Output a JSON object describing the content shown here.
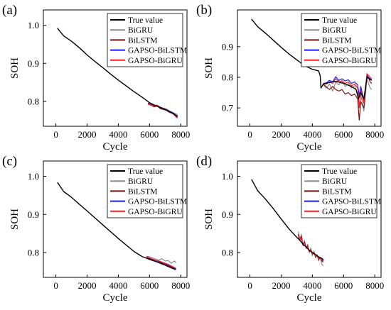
{
  "colors": {
    "True value": "#000000",
    "BiGRU": "#8c8c8c",
    "BiLSTM": "#7a1010",
    "GAPSO-BiLSTM": "#1a1aff",
    "GAPSO-BiGRU": "#ff1a1a"
  },
  "chart_data": [
    {
      "type": "line",
      "panel_label": "(a)",
      "xlabel": "Cycle",
      "ylabel": "SOH",
      "xlim": [
        -800,
        8400
      ],
      "ylim": [
        0.735,
        1.04
      ],
      "xticks": [
        0,
        2000,
        4000,
        6000,
        8000
      ],
      "yticks": [
        0.8,
        0.9,
        1.0
      ],
      "yticklabels": [
        "0.8",
        "0.9",
        "1.0"
      ],
      "legend_placement": "top-right",
      "series": [
        {
          "name": "True value",
          "x": [
            100,
            500,
            1000,
            1500,
            2000,
            2500,
            3000,
            3500,
            4000,
            4500,
            5000,
            5500,
            6000,
            6500,
            7000,
            7500,
            7800
          ],
          "y": [
            0.992,
            0.972,
            0.958,
            0.941,
            0.922,
            0.905,
            0.889,
            0.872,
            0.856,
            0.841,
            0.826,
            0.812,
            0.797,
            0.787,
            0.779,
            0.769,
            0.761
          ]
        },
        {
          "name": "BiGRU",
          "x": [
            5900,
            6100,
            6300,
            6500,
            6700,
            6900,
            7100,
            7300,
            7500,
            7700,
            7800
          ],
          "y": [
            0.795,
            0.793,
            0.789,
            0.791,
            0.784,
            0.783,
            0.78,
            0.775,
            0.771,
            0.768,
            0.765
          ]
        },
        {
          "name": "BiLSTM",
          "x": [
            5900,
            6100,
            6300,
            6500,
            6700,
            6900,
            7100,
            7300,
            7500,
            7700,
            7800
          ],
          "y": [
            0.793,
            0.79,
            0.786,
            0.788,
            0.781,
            0.779,
            0.776,
            0.771,
            0.768,
            0.76,
            0.757
          ]
        },
        {
          "name": "GAPSO-BiLSTM",
          "x": [
            5900,
            6100,
            6300,
            6500,
            6700,
            6900,
            7100,
            7300,
            7500,
            7700,
            7800
          ],
          "y": [
            0.796,
            0.792,
            0.79,
            0.789,
            0.785,
            0.781,
            0.778,
            0.774,
            0.77,
            0.764,
            0.762
          ]
        },
        {
          "name": "GAPSO-BiGRU",
          "x": [
            5900,
            6100,
            6300,
            6500,
            6700,
            6900,
            7100,
            7300,
            7500,
            7700,
            7800
          ],
          "y": [
            0.794,
            0.791,
            0.788,
            0.79,
            0.783,
            0.78,
            0.777,
            0.773,
            0.769,
            0.762,
            0.76
          ]
        }
      ]
    },
    {
      "type": "line",
      "panel_label": "(b)",
      "xlabel": "Cycle",
      "ylabel": "SOH",
      "xlim": [
        -800,
        8400
      ],
      "ylim": [
        0.64,
        1.02
      ],
      "xticks": [
        0,
        2000,
        4000,
        6000,
        8000
      ],
      "yticks": [
        0.7,
        0.8,
        0.9
      ],
      "yticklabels": [
        "0.7",
        "0.8",
        "0.9"
      ],
      "legend_placement": "top-right",
      "series": [
        {
          "name": "True value",
          "x": [
            100,
            500,
            1000,
            1500,
            2000,
            2500,
            3000,
            3500,
            4000,
            4400,
            4500,
            4550,
            4700,
            5000,
            5500,
            6000,
            6500,
            6800,
            6950,
            7100,
            7300,
            7500,
            7800
          ],
          "y": [
            0.99,
            0.965,
            0.944,
            0.921,
            0.898,
            0.876,
            0.857,
            0.838,
            0.826,
            0.821,
            0.805,
            0.765,
            0.778,
            0.782,
            0.787,
            0.78,
            0.77,
            0.76,
            0.73,
            0.75,
            0.73,
            0.8,
            0.79
          ]
        },
        {
          "name": "BiGRU",
          "x": [
            4700,
            4900,
            5100,
            5300,
            5500,
            5700,
            5900,
            6100,
            6300,
            6500,
            6700,
            6900,
            7000,
            7100,
            7300,
            7500,
            7700,
            7800
          ],
          "y": [
            0.775,
            0.765,
            0.778,
            0.755,
            0.785,
            0.775,
            0.79,
            0.77,
            0.778,
            0.765,
            0.772,
            0.745,
            0.735,
            0.745,
            0.69,
            0.795,
            0.765,
            0.76
          ]
        },
        {
          "name": "BiLSTM",
          "x": [
            4700,
            4900,
            5100,
            5300,
            5500,
            5700,
            5900,
            6100,
            6300,
            6500,
            6700,
            6900,
            7000,
            7100,
            7300,
            7500,
            7700,
            7800
          ],
          "y": [
            0.778,
            0.768,
            0.76,
            0.77,
            0.76,
            0.755,
            0.76,
            0.745,
            0.75,
            0.74,
            0.745,
            0.73,
            0.66,
            0.72,
            0.7,
            0.81,
            0.785,
            0.78
          ]
        },
        {
          "name": "GAPSO-BiLSTM",
          "x": [
            4700,
            4900,
            5100,
            5300,
            5500,
            5700,
            5900,
            6100,
            6300,
            6500,
            6700,
            6900,
            7000,
            7100,
            7300,
            7500,
            7700,
            7800
          ],
          "y": [
            0.78,
            0.782,
            0.79,
            0.785,
            0.802,
            0.79,
            0.795,
            0.788,
            0.792,
            0.78,
            0.785,
            0.775,
            0.74,
            0.77,
            0.725,
            0.805,
            0.795,
            0.792
          ]
        },
        {
          "name": "GAPSO-BiGRU",
          "x": [
            4700,
            4900,
            5100,
            5300,
            5500,
            5700,
            5900,
            6100,
            6300,
            6500,
            6700,
            6900,
            7000,
            7100,
            7300,
            7500,
            7700,
            7800
          ],
          "y": [
            0.779,
            0.778,
            0.785,
            0.78,
            0.795,
            0.785,
            0.788,
            0.78,
            0.785,
            0.772,
            0.778,
            0.765,
            0.7,
            0.76,
            0.715,
            0.812,
            0.8,
            0.795
          ]
        }
      ]
    },
    {
      "type": "line",
      "panel_label": "(c)",
      "xlabel": "Cycle",
      "ylabel": "SOH",
      "xlim": [
        -800,
        8400
      ],
      "ylim": [
        0.735,
        1.04
      ],
      "xticks": [
        0,
        2000,
        4000,
        6000,
        8000
      ],
      "yticks": [
        0.8,
        0.9,
        1.0
      ],
      "yticklabels": [
        "0.8",
        "0.9",
        "1.0"
      ],
      "legend_placement": "top-right",
      "series": [
        {
          "name": "True value",
          "x": [
            100,
            500,
            1000,
            1500,
            2000,
            2500,
            3000,
            3500,
            4000,
            4500,
            5000,
            5500,
            6000,
            6500,
            7000,
            7500,
            7700
          ],
          "y": [
            0.984,
            0.96,
            0.945,
            0.927,
            0.909,
            0.891,
            0.873,
            0.855,
            0.837,
            0.82,
            0.803,
            0.79,
            0.782,
            0.775,
            0.767,
            0.758,
            0.755
          ]
        },
        {
          "name": "BiGRU",
          "x": [
            5800,
            6000,
            6200,
            6400,
            6600,
            6800,
            7000,
            7200,
            7400,
            7600,
            7700
          ],
          "y": [
            0.79,
            0.789,
            0.786,
            0.783,
            0.78,
            0.784,
            0.778,
            0.779,
            0.772,
            0.778,
            0.773
          ]
        },
        {
          "name": "BiLSTM",
          "x": [
            5800,
            6000,
            6200,
            6400,
            6600,
            6800,
            7000,
            7200,
            7400,
            7600,
            7700
          ],
          "y": [
            0.787,
            0.784,
            0.781,
            0.779,
            0.776,
            0.772,
            0.77,
            0.766,
            0.762,
            0.759,
            0.757
          ]
        },
        {
          "name": "GAPSO-BiLSTM",
          "x": [
            5800,
            6000,
            6200,
            6400,
            6600,
            6800,
            7000,
            7200,
            7400,
            7600,
            7700
          ],
          "y": [
            0.788,
            0.785,
            0.782,
            0.779,
            0.777,
            0.774,
            0.771,
            0.768,
            0.764,
            0.76,
            0.758
          ]
        },
        {
          "name": "GAPSO-BiGRU",
          "x": [
            5800,
            6000,
            6200,
            6400,
            6600,
            6800,
            7000,
            7200,
            7400,
            7600,
            7700
          ],
          "y": [
            0.789,
            0.786,
            0.783,
            0.78,
            0.778,
            0.775,
            0.772,
            0.769,
            0.765,
            0.761,
            0.759
          ]
        }
      ]
    },
    {
      "type": "line",
      "panel_label": "(d)",
      "xlabel": "Cycle",
      "ylabel": "SOH",
      "xlim": [
        -800,
        8400
      ],
      "ylim": [
        0.735,
        1.04
      ],
      "xticks": [
        0,
        2000,
        4000,
        6000,
        8000
      ],
      "yticks": [
        0.8,
        0.9,
        1.0
      ],
      "yticklabels": [
        "0.8",
        "0.9",
        "1.0"
      ],
      "legend_placement": "top-right",
      "series": [
        {
          "name": "True value",
          "x": [
            100,
            500,
            1000,
            1500,
            2000,
            2500,
            3000,
            3200,
            3400,
            3600,
            3800,
            4000,
            4200,
            4400,
            4600,
            4700
          ],
          "y": [
            0.992,
            0.962,
            0.94,
            0.915,
            0.888,
            0.862,
            0.84,
            0.832,
            0.822,
            0.815,
            0.806,
            0.8,
            0.795,
            0.789,
            0.785,
            0.781
          ]
        },
        {
          "name": "BiGRU",
          "x": [
            3100,
            3200,
            3300,
            3400,
            3500,
            3600,
            3700,
            3800,
            3900,
            4000,
            4100,
            4200,
            4300,
            4400,
            4500,
            4600,
            4700
          ],
          "y": [
            0.855,
            0.835,
            0.848,
            0.82,
            0.832,
            0.81,
            0.822,
            0.8,
            0.812,
            0.792,
            0.804,
            0.786,
            0.795,
            0.778,
            0.788,
            0.77,
            0.765
          ]
        },
        {
          "name": "BiLSTM",
          "x": [
            3100,
            3200,
            3300,
            3400,
            3500,
            3600,
            3700,
            3800,
            3900,
            4000,
            4100,
            4200,
            4300,
            4400,
            4500,
            4600,
            4700
          ],
          "y": [
            0.848,
            0.832,
            0.842,
            0.818,
            0.828,
            0.812,
            0.818,
            0.802,
            0.808,
            0.795,
            0.8,
            0.789,
            0.792,
            0.783,
            0.786,
            0.778,
            0.775
          ]
        },
        {
          "name": "GAPSO-BiLSTM",
          "x": [
            3100,
            3200,
            3300,
            3400,
            3500,
            3600,
            3700,
            3800,
            3900,
            4000,
            4100,
            4200,
            4300,
            4400,
            4500,
            4600,
            4700
          ],
          "y": [
            0.842,
            0.833,
            0.836,
            0.822,
            0.825,
            0.813,
            0.815,
            0.805,
            0.806,
            0.798,
            0.798,
            0.791,
            0.79,
            0.786,
            0.785,
            0.781,
            0.779
          ]
        },
        {
          "name": "GAPSO-BiGRU",
          "x": [
            3100,
            3200,
            3300,
            3400,
            3500,
            3600,
            3700,
            3800,
            3900,
            4000,
            4100,
            4200,
            4300,
            4400,
            4500,
            4600,
            4700
          ],
          "y": [
            0.845,
            0.834,
            0.838,
            0.82,
            0.826,
            0.812,
            0.816,
            0.803,
            0.807,
            0.796,
            0.799,
            0.79,
            0.791,
            0.785,
            0.786,
            0.78,
            0.778
          ]
        }
      ]
    }
  ]
}
